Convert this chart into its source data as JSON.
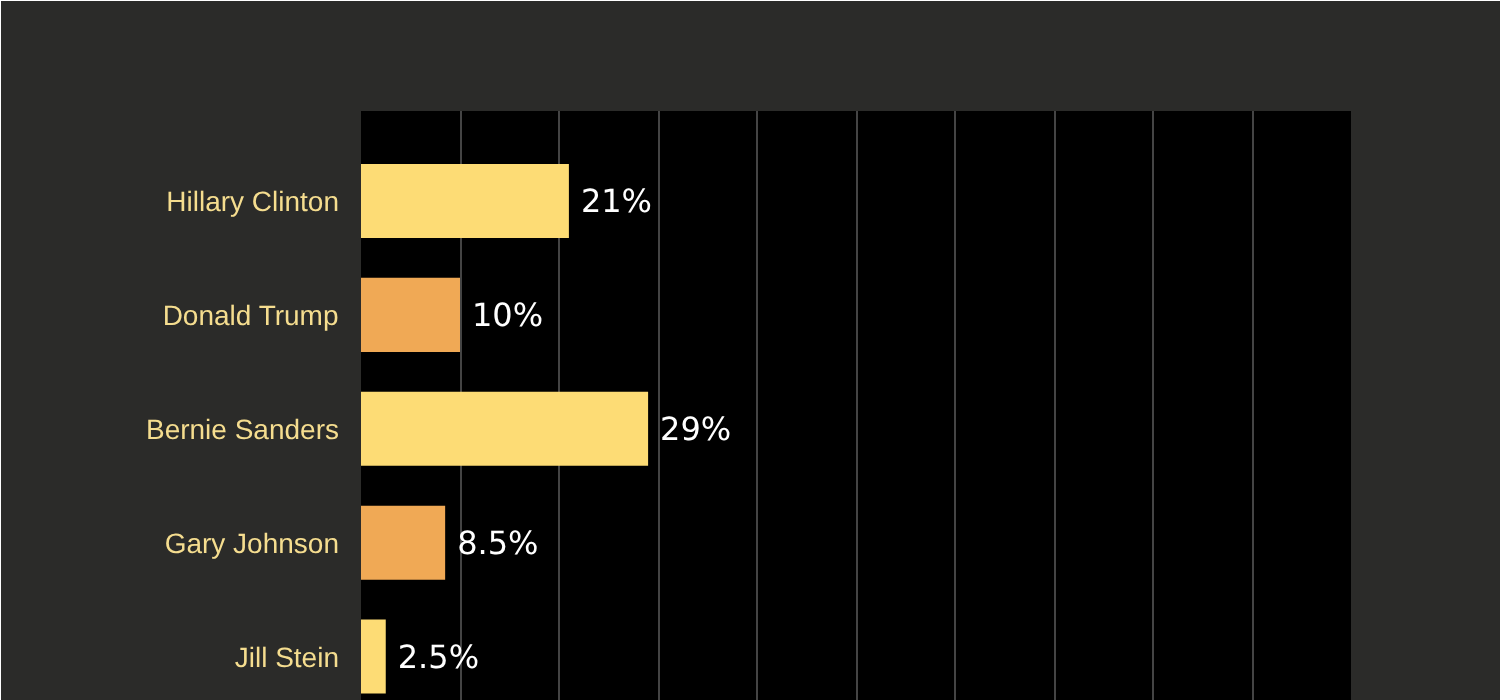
{
  "chart_data": {
    "type": "bar",
    "orientation": "horizontal",
    "categories": [
      "Hillary Clinton",
      "Donald Trump",
      "Bernie Sanders",
      "Gary Johnson",
      "Jill Stein"
    ],
    "values": [
      21,
      10,
      29,
      8.5,
      2.5
    ],
    "colors": [
      "#fddc75",
      "#f0a955",
      "#fddc75",
      "#f0a955",
      "#fddc75"
    ],
    "value_labels": [
      "21%",
      "10%",
      "29%",
      "8.5%",
      "2.5%"
    ],
    "xlim": [
      0,
      100
    ],
    "xticks": [
      {
        "value": 0,
        "label": null
      },
      {
        "value": 10,
        "label": null
      },
      {
        "value": 20,
        "label": null
      },
      {
        "value": 30,
        "label": null
      },
      {
        "value": 40,
        "label": null
      },
      {
        "value": 50,
        "label": null
      },
      {
        "value": 60,
        "label": null
      },
      {
        "value": 70,
        "label": null
      },
      {
        "value": 80,
        "label": null
      },
      {
        "value": 90,
        "label": null
      },
      {
        "value": 100,
        "label": null
      }
    ],
    "grid": "x",
    "tick_labels": "y"
  }
}
